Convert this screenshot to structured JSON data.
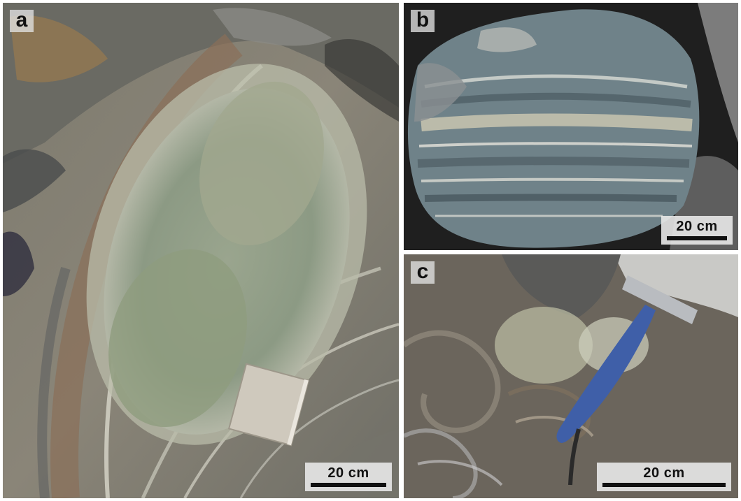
{
  "panels": {
    "a": {
      "label": "a",
      "scale_label": "20 cm"
    },
    "b": {
      "label": "b",
      "scale_label": "20 cm"
    },
    "c": {
      "label": "c",
      "scale_label": "20 cm"
    }
  },
  "colors": {
    "rock_gray": "#6e6a62",
    "rock_green": "#8e9c86",
    "rock_brown": "#8a6f58",
    "vein_white": "#e4e2d6",
    "band_blue_gray": "#6f8289",
    "shadow": "#1c1c1c",
    "hammer_blue": "#3f5fa8"
  }
}
